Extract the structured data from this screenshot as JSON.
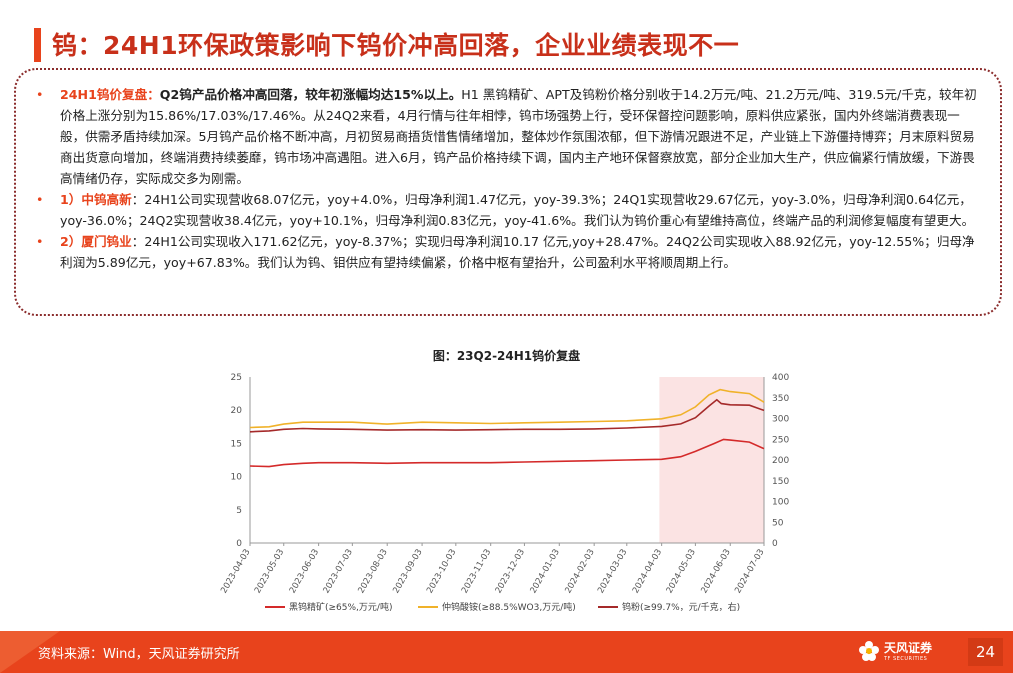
{
  "page": {
    "title": "钨：24H1环保政策影响下钨价冲高回落，企业业绩表现不一",
    "page_number": "24"
  },
  "summary": {
    "p1": {
      "bullet": "•",
      "label": "24H1钨价复盘：",
      "lead": "Q2钨产品价格冲高回落，较年初涨幅均达15%以上。",
      "body": "H1 黑钨精矿、APT及钨粉价格分别收于14.2万元/吨、21.2万元/吨、319.5元/千克，较年初价格上涨分别为15.86%/17.03%/17.46%。从24Q2来看，4月行情与往年相悖，钨市场强势上行，受环保督控问题影响，原料供应紧张，国内外终端消费表现一般，供需矛盾持续加深。5月钨产品价格不断冲高，月初贸易商捂货惜售情绪增加，整体炒作氛围浓郁，但下游情况跟进不足，产业链上下游僵持博弈；月末原料贸易商出货意向增加，终端消费持续萎靡，钨市场冲高遇阻。进入6月，钨产品价格持续下调，国内主产地环保督察放宽，部分企业加大生产，供应偏紧行情放缓，下游畏高情绪仍存，实际成交多为刚需。"
    },
    "p2": {
      "bullet": "•",
      "label": "1）中钨高新",
      "body": "：24H1公司实现营收68.07亿元，yoy+4.0%，归母净利润1.47亿元，yoy-39.3%；24Q1实现营收29.67亿元，yoy-3.0%，归母净利润0.64亿元，yoy-36.0%；24Q2实现营收38.4亿元，yoy+10.1%，归母净利润0.83亿元，yoy-41.6%。我们认为钨价重心有望维持高位，终端产品的利润修复幅度有望更大。"
    },
    "p3": {
      "bullet": "•",
      "label": "2）厦门钨业",
      "body": "：24H1公司实现收入171.62亿元，yoy-8.37%；实现归母净利润10.17 亿元,yoy+28.47%。24Q2公司实现收入88.92亿元，yoy-12.55%；归母净利润为5.89亿元，yoy+67.83%。我们认为钨、钼供应有望持续偏紧，价格中枢有望抬升，公司盈利水平将顺周期上行。"
    }
  },
  "chart_data": {
    "type": "line",
    "title": "图：23Q2-24H1钨价复盘",
    "x": [
      "2023-04-03",
      "2023-05-03",
      "2023-06-03",
      "2023-07-03",
      "2023-08-03",
      "2023-09-03",
      "2023-10-03",
      "2023-11-03",
      "2023-12-03",
      "2024-01-03",
      "2024-02-03",
      "2024-03-03",
      "2024-04-03",
      "2024-05-03",
      "2024-06-03",
      "2024-07-03"
    ],
    "x_tick_labels": [
      "2023-04-03",
      "2023-05-03",
      "2023-06-03",
      "2023-07-03",
      "2023-08-03",
      "2023-09-03",
      "2023-10-03",
      "2023-11-03",
      "2023-12-03",
      "2024-01-03",
      "2024-02-03",
      "2024-03-03",
      "2024-04-03",
      "2024-05-03",
      "2024-06-03",
      "2024-07-03"
    ],
    "y_left": {
      "min": 0,
      "max": 25,
      "ticks": [
        "0",
        "5",
        "10",
        "15",
        "20",
        "25"
      ]
    },
    "y_right": {
      "min": 0,
      "max": 400,
      "ticks": [
        "0",
        "50",
        "100",
        "150",
        "200",
        "250",
        "300",
        "350",
        "400"
      ]
    },
    "highlight_range": [
      "2024-04-01",
      "2024-07-03"
    ],
    "highlight_color": "#fbe3e3",
    "legend_position": "bottom",
    "series": [
      {
        "name": "黑钨精矿(≥65%,万元/吨)",
        "axis": "left",
        "color": "#d42a2a",
        "points": [
          [
            "2023-04-03",
            11.6
          ],
          [
            "2023-04-20",
            11.5
          ],
          [
            "2023-05-03",
            11.8
          ],
          [
            "2023-05-20",
            12.0
          ],
          [
            "2023-06-03",
            12.1
          ],
          [
            "2023-07-03",
            12.1
          ],
          [
            "2023-08-03",
            12.0
          ],
          [
            "2023-09-03",
            12.1
          ],
          [
            "2023-10-03",
            12.1
          ],
          [
            "2023-11-03",
            12.1
          ],
          [
            "2023-12-03",
            12.2
          ],
          [
            "2024-01-03",
            12.3
          ],
          [
            "2024-02-03",
            12.4
          ],
          [
            "2024-03-03",
            12.5
          ],
          [
            "2024-04-03",
            12.6
          ],
          [
            "2024-04-20",
            13.0
          ],
          [
            "2024-05-03",
            13.8
          ],
          [
            "2024-05-20",
            15.0
          ],
          [
            "2024-05-28",
            15.6
          ],
          [
            "2024-06-03",
            15.5
          ],
          [
            "2024-06-20",
            15.2
          ],
          [
            "2024-07-03",
            14.2
          ]
        ]
      },
      {
        "name": "仲钨酸铵(≥88.5%WO3,万元/吨)",
        "axis": "left",
        "color": "#f0b22a",
        "points": [
          [
            "2023-04-03",
            17.4
          ],
          [
            "2023-04-20",
            17.5
          ],
          [
            "2023-05-03",
            17.9
          ],
          [
            "2023-05-20",
            18.2
          ],
          [
            "2023-06-03",
            18.2
          ],
          [
            "2023-07-03",
            18.2
          ],
          [
            "2023-08-03",
            17.9
          ],
          [
            "2023-09-03",
            18.2
          ],
          [
            "2023-10-03",
            18.1
          ],
          [
            "2023-11-03",
            18.0
          ],
          [
            "2023-12-03",
            18.1
          ],
          [
            "2024-01-03",
            18.2
          ],
          [
            "2024-02-03",
            18.3
          ],
          [
            "2024-03-03",
            18.4
          ],
          [
            "2024-04-03",
            18.7
          ],
          [
            "2024-04-20",
            19.3
          ],
          [
            "2024-05-03",
            20.5
          ],
          [
            "2024-05-15",
            22.3
          ],
          [
            "2024-05-25",
            23.1
          ],
          [
            "2024-06-03",
            22.8
          ],
          [
            "2024-06-20",
            22.5
          ],
          [
            "2024-07-03",
            21.2
          ]
        ]
      },
      {
        "name": "钨粉(≥99.7%，元/千克，右)",
        "axis": "right",
        "color": "#a52a2a",
        "points": [
          [
            "2023-04-03",
            268
          ],
          [
            "2023-04-20",
            270
          ],
          [
            "2023-05-03",
            274
          ],
          [
            "2023-05-20",
            276
          ],
          [
            "2023-06-03",
            275
          ],
          [
            "2023-07-03",
            274
          ],
          [
            "2023-08-03",
            272
          ],
          [
            "2023-09-03",
            273
          ],
          [
            "2023-10-03",
            272
          ],
          [
            "2023-11-03",
            273
          ],
          [
            "2023-12-03",
            274
          ],
          [
            "2024-01-03",
            274
          ],
          [
            "2024-02-03",
            275
          ],
          [
            "2024-03-03",
            277
          ],
          [
            "2024-04-03",
            281
          ],
          [
            "2024-04-20",
            287
          ],
          [
            "2024-05-03",
            302
          ],
          [
            "2024-05-15",
            330
          ],
          [
            "2024-05-22",
            345
          ],
          [
            "2024-05-26",
            336
          ],
          [
            "2024-06-03",
            333
          ],
          [
            "2024-06-20",
            332
          ],
          [
            "2024-07-03",
            319.5
          ]
        ]
      }
    ]
  },
  "footer": {
    "source": "资料来源：Wind，天风证券研究所",
    "brand_cn": "天风证券",
    "brand_en": "TF SECURITIES"
  },
  "colors": {
    "accent": "#e8431c",
    "title": "#c8301a",
    "dotted_border": "#8b2d2d"
  }
}
